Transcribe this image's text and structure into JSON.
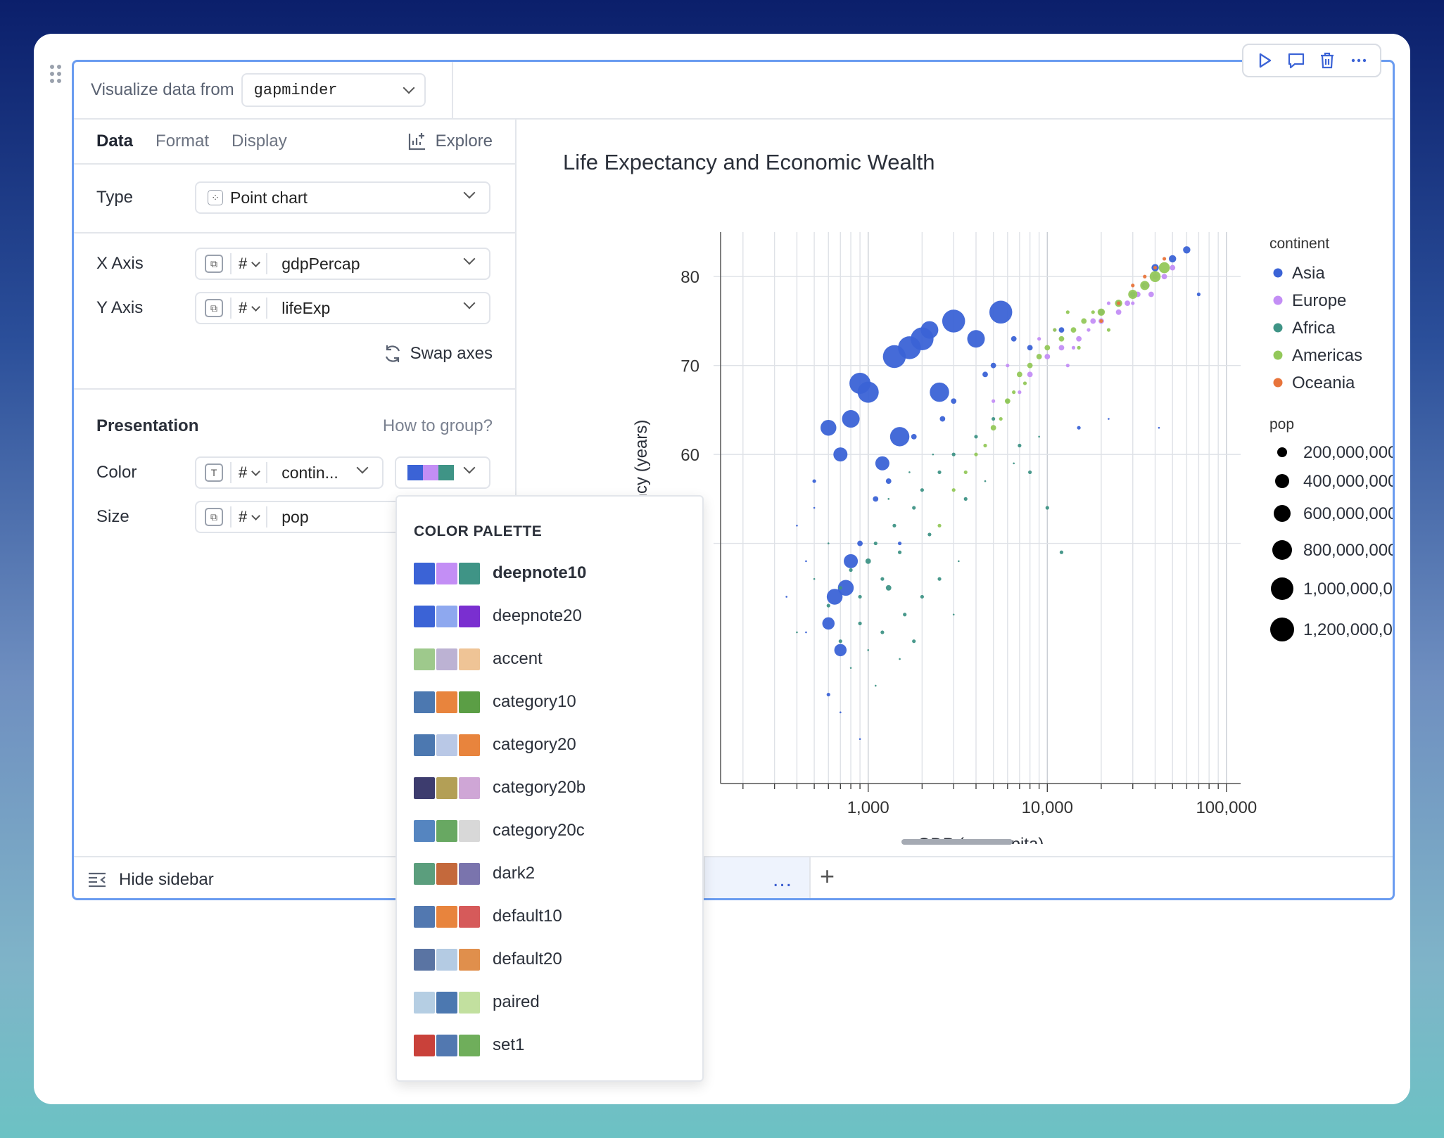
{
  "header": {
    "visualize_label": "Visualize data from",
    "dataframe": "gapminder"
  },
  "toolbar": {
    "icons": [
      "play-icon",
      "comment-icon",
      "trash-icon",
      "more-icon"
    ]
  },
  "sidebar": {
    "tabs": [
      {
        "label": "Data",
        "active": true
      },
      {
        "label": "Format"
      },
      {
        "label": "Display"
      }
    ],
    "explore_label": "Explore",
    "type_label": "Type",
    "type_value": "Point chart",
    "x_axis_label": "X Axis",
    "x_axis_type": "#",
    "x_axis_value": "gdpPercap",
    "y_axis_label": "Y Axis",
    "y_axis_type": "#",
    "y_axis_value": "lifeExp",
    "swap_label": "Swap axes",
    "presentation_label": "Presentation",
    "how_to_group": "How to group?",
    "color_label": "Color",
    "color_type": "#",
    "color_value": "contin...",
    "size_label": "Size",
    "size_type": "#",
    "size_value": "pop",
    "palette_swatches": [
      "#3b63d6",
      "#c38ef5",
      "#3f9486"
    ]
  },
  "footer": {
    "hide_sidebar": "Hide sidebar",
    "more": "...",
    "add": "+"
  },
  "palette_menu": {
    "title": "COLOR PALETTE",
    "items": [
      {
        "name": "deepnote10",
        "colors": [
          "#3b63d6",
          "#c38ef5",
          "#3f9486"
        ],
        "selected": true
      },
      {
        "name": "deepnote20",
        "colors": [
          "#3b63d6",
          "#8ea8ef",
          "#7a2fd0"
        ]
      },
      {
        "name": "accent",
        "colors": [
          "#9ec98c",
          "#bcb2d3",
          "#efc496"
        ]
      },
      {
        "name": "category10",
        "colors": [
          "#4c78b0",
          "#e8843d",
          "#5b9e45"
        ]
      },
      {
        "name": "category20",
        "colors": [
          "#4c78b0",
          "#b9c8e6",
          "#e8843d"
        ]
      },
      {
        "name": "category20b",
        "colors": [
          "#3d3c6e",
          "#b39f56",
          "#cfa6d6"
        ]
      },
      {
        "name": "category20c",
        "colors": [
          "#5585c0",
          "#68a862",
          "#d8d8d8"
        ]
      },
      {
        "name": "dark2",
        "colors": [
          "#5b9e7d",
          "#c4693c",
          "#7a74ad"
        ]
      },
      {
        "name": "default10",
        "colors": [
          "#5278b0",
          "#e8843d",
          "#d65a5a"
        ]
      },
      {
        "name": "default20",
        "colors": [
          "#5a74a3",
          "#b4cbe3",
          "#e08f4c"
        ]
      },
      {
        "name": "paired",
        "colors": [
          "#b5cee3",
          "#4c78b0",
          "#c2e09f"
        ]
      },
      {
        "name": "set1",
        "colors": [
          "#c9413a",
          "#5278b0",
          "#6fae5b"
        ]
      }
    ]
  },
  "chart_data": {
    "type": "scatter",
    "title": "Life Expectancy and Economic Wealth",
    "xlabel": "GDP (per capita)",
    "ylabel": "Life Expectancy (years)",
    "xscale": "log",
    "xlim": [
      150,
      120000
    ],
    "ylim": [
      23,
      85
    ],
    "x_ticks": [
      1000,
      10000,
      100000
    ],
    "x_tick_labels": [
      "1,000",
      "10,000",
      "100,000"
    ],
    "y_ticks": [
      50,
      60,
      70,
      80
    ],
    "grid": true,
    "legend_color": {
      "title": "continent",
      "entries": [
        {
          "name": "Asia",
          "color": "#3b63d6"
        },
        {
          "name": "Europe",
          "color": "#c38ef5"
        },
        {
          "name": "Africa",
          "color": "#3f9486"
        },
        {
          "name": "Americas",
          "color": "#93c85a"
        },
        {
          "name": "Oceania",
          "color": "#e8743b"
        }
      ]
    },
    "legend_size": {
      "title": "pop",
      "entries": [
        {
          "label": "200,000,000",
          "value": 200000000
        },
        {
          "label": "400,000,000",
          "value": 400000000
        },
        {
          "label": "600,000,000",
          "value": 600000000
        },
        {
          "label": "800,000,000",
          "value": 800000000
        },
        {
          "label": "1,000,000,000",
          "value": 1000000000
        },
        {
          "label": "1,200,000,000",
          "value": 1200000000
        }
      ]
    },
    "series": [
      {
        "name": "Asia",
        "points": [
          [
            400,
            52,
            1
          ],
          [
            500,
            57,
            2
          ],
          [
            450,
            48,
            1
          ],
          [
            600,
            63,
            9
          ],
          [
            700,
            60,
            8
          ],
          [
            800,
            64,
            10
          ],
          [
            900,
            68,
            12
          ],
          [
            1000,
            67,
            12
          ],
          [
            1200,
            59,
            8
          ],
          [
            1400,
            71,
            13
          ],
          [
            1500,
            62,
            11
          ],
          [
            1700,
            72,
            13
          ],
          [
            2000,
            73,
            13
          ],
          [
            2200,
            74,
            10
          ],
          [
            2500,
            67,
            11
          ],
          [
            3000,
            75,
            13
          ],
          [
            4000,
            73,
            10
          ],
          [
            5500,
            76,
            13
          ],
          [
            500,
            54,
            1
          ],
          [
            650,
            44,
            9
          ],
          [
            750,
            45,
            9
          ],
          [
            600,
            41,
            7
          ],
          [
            700,
            38,
            7
          ],
          [
            800,
            48,
            8
          ],
          [
            600,
            33,
            2
          ],
          [
            900,
            50,
            3
          ],
          [
            1100,
            55,
            3
          ],
          [
            1800,
            62,
            3
          ],
          [
            3000,
            66,
            3
          ],
          [
            5000,
            70,
            3
          ],
          [
            8000,
            72,
            3
          ],
          [
            12000,
            74,
            3
          ],
          [
            20000,
            76,
            3
          ],
          [
            30000,
            78,
            3
          ],
          [
            40000,
            81,
            4
          ],
          [
            50000,
            82,
            4
          ],
          [
            60000,
            83,
            4
          ],
          [
            35000,
            79,
            3
          ],
          [
            25000,
            77,
            3
          ],
          [
            1300,
            57,
            3
          ],
          [
            2600,
            64,
            3
          ],
          [
            4500,
            69,
            3
          ],
          [
            6500,
            73,
            3
          ],
          [
            350,
            44,
            1
          ],
          [
            450,
            40,
            1
          ],
          [
            700,
            31,
            1
          ],
          [
            900,
            28,
            1
          ],
          [
            1500,
            50,
            2
          ],
          [
            15000,
            63,
            2
          ],
          [
            22000,
            64,
            1
          ],
          [
            42000,
            63,
            1
          ],
          [
            70000,
            78,
            2
          ]
        ]
      },
      {
        "name": "Europe",
        "points": [
          [
            8000,
            69,
            3
          ],
          [
            10000,
            71,
            3
          ],
          [
            12000,
            72,
            3
          ],
          [
            15000,
            73,
            3
          ],
          [
            18000,
            75,
            3
          ],
          [
            20000,
            75,
            3
          ],
          [
            25000,
            76,
            3
          ],
          [
            28000,
            77,
            3
          ],
          [
            32000,
            78,
            3
          ],
          [
            36000,
            79,
            3
          ],
          [
            40000,
            80,
            3
          ],
          [
            45000,
            80,
            3
          ],
          [
            6000,
            70,
            2
          ],
          [
            9000,
            73,
            2
          ],
          [
            11000,
            74,
            2
          ],
          [
            14000,
            72,
            2
          ],
          [
            17000,
            74,
            2
          ],
          [
            22000,
            77,
            2
          ],
          [
            30000,
            77,
            2
          ],
          [
            38000,
            78,
            3
          ],
          [
            50000,
            81,
            3
          ],
          [
            5000,
            66,
            2
          ],
          [
            7000,
            67,
            2
          ],
          [
            13000,
            70,
            2
          ]
        ]
      },
      {
        "name": "Africa",
        "points": [
          [
            600,
            43,
            2
          ],
          [
            700,
            45,
            2
          ],
          [
            800,
            47,
            2
          ],
          [
            900,
            44,
            2
          ],
          [
            1000,
            48,
            3
          ],
          [
            1100,
            50,
            2
          ],
          [
            1200,
            46,
            2
          ],
          [
            1300,
            45,
            3
          ],
          [
            1400,
            52,
            2
          ],
          [
            1500,
            49,
            2
          ],
          [
            1600,
            42,
            2
          ],
          [
            1800,
            54,
            2
          ],
          [
            2000,
            56,
            2
          ],
          [
            2200,
            51,
            2
          ],
          [
            2500,
            58,
            2
          ],
          [
            3000,
            60,
            2
          ],
          [
            3500,
            55,
            2
          ],
          [
            4000,
            62,
            2
          ],
          [
            5000,
            64,
            2
          ],
          [
            6000,
            66,
            2
          ],
          [
            7000,
            61,
            2
          ],
          [
            8000,
            58,
            2
          ],
          [
            10000,
            54,
            2
          ],
          [
            12000,
            49,
            2
          ],
          [
            700,
            39,
            2
          ],
          [
            800,
            36,
            1
          ],
          [
            900,
            41,
            2
          ],
          [
            1000,
            38,
            1
          ],
          [
            1200,
            40,
            2
          ],
          [
            1500,
            37,
            1
          ],
          [
            1800,
            39,
            2
          ],
          [
            2000,
            44,
            2
          ],
          [
            2500,
            46,
            2
          ],
          [
            3000,
            42,
            1
          ],
          [
            600,
            50,
            1
          ],
          [
            500,
            46,
            1
          ],
          [
            400,
            40,
            1
          ],
          [
            1300,
            55,
            1
          ],
          [
            1700,
            58,
            1
          ],
          [
            2300,
            60,
            1
          ],
          [
            4500,
            57,
            1
          ],
          [
            6500,
            59,
            1
          ],
          [
            9000,
            62,
            1
          ],
          [
            3200,
            48,
            1
          ],
          [
            1100,
            34,
            1
          ]
        ]
      },
      {
        "name": "Americas",
        "points": [
          [
            3000,
            56,
            2
          ],
          [
            3500,
            58,
            2
          ],
          [
            4000,
            60,
            2
          ],
          [
            5000,
            63,
            3
          ],
          [
            6000,
            66,
            3
          ],
          [
            7000,
            69,
            3
          ],
          [
            8000,
            70,
            3
          ],
          [
            9000,
            71,
            3
          ],
          [
            10000,
            72,
            3
          ],
          [
            12000,
            73,
            3
          ],
          [
            14000,
            74,
            3
          ],
          [
            16000,
            75,
            3
          ],
          [
            20000,
            76,
            4
          ],
          [
            25000,
            77,
            4
          ],
          [
            30000,
            78,
            5
          ],
          [
            35000,
            79,
            5
          ],
          [
            40000,
            80,
            6
          ],
          [
            45000,
            81,
            6
          ],
          [
            2500,
            52,
            2
          ],
          [
            4500,
            61,
            2
          ],
          [
            5500,
            64,
            2
          ],
          [
            6500,
            67,
            2
          ],
          [
            7500,
            68,
            2
          ],
          [
            11000,
            74,
            2
          ],
          [
            13000,
            76,
            2
          ],
          [
            15000,
            72,
            2
          ],
          [
            18000,
            76,
            2
          ],
          [
            22000,
            74,
            2
          ]
        ]
      },
      {
        "name": "Oceania",
        "points": [
          [
            20000,
            75,
            2
          ],
          [
            25000,
            77,
            2
          ],
          [
            30000,
            79,
            2
          ],
          [
            35000,
            80,
            2
          ],
          [
            40000,
            81,
            2
          ],
          [
            45000,
            82,
            2
          ]
        ]
      }
    ]
  }
}
